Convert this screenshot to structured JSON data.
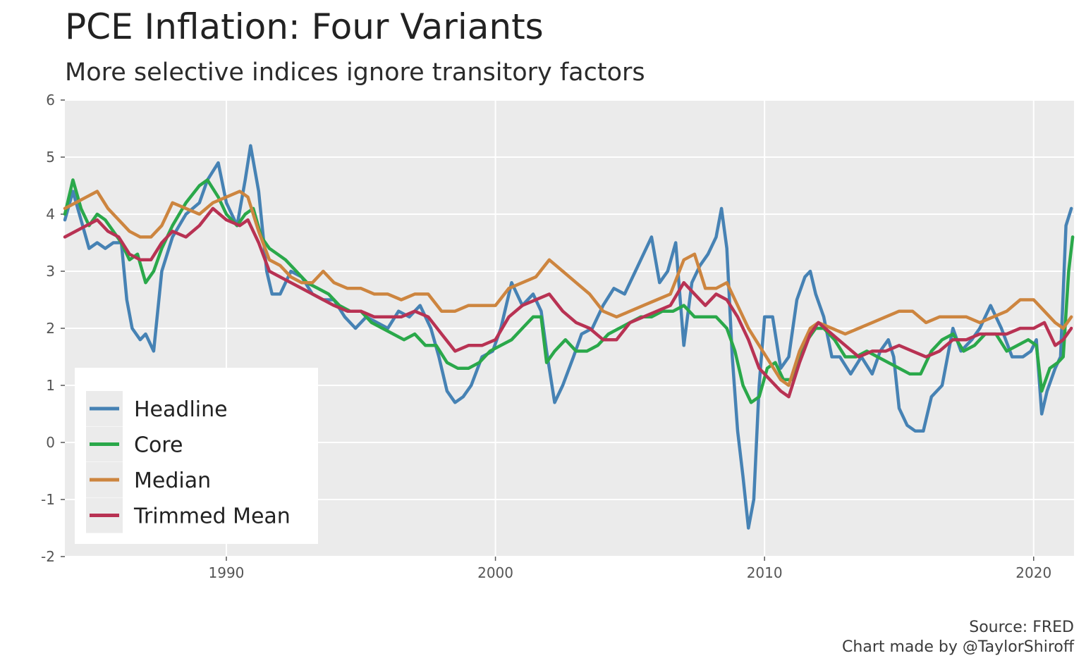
{
  "header": {
    "title": "PCE Inflation: Four Variants",
    "subtitle": "More selective indices ignore transitory factors"
  },
  "caption": {
    "source": "Source: FRED",
    "credit": "Chart made by @TaylorShiroff"
  },
  "colors": {
    "panel_background": "#ebebeb",
    "gridline": "#ffffff",
    "headline": "#4682b4",
    "core": "#2aa84a",
    "median": "#cd853f",
    "trimmed_mean": "#b83253"
  },
  "chart_data": {
    "type": "line",
    "xlim": [
      1984,
      2021.5
    ],
    "ylim": [
      -2,
      6
    ],
    "x_ticks": [
      1990,
      2000,
      2010,
      2020
    ],
    "x_tick_labels": [
      "1990",
      "2000",
      "2010",
      "2020"
    ],
    "y_ticks": [
      -2,
      -1,
      0,
      1,
      2,
      3,
      4,
      5,
      6
    ],
    "y_tick_labels": [
      "-2",
      "-1",
      "0",
      "1",
      "2",
      "3",
      "4",
      "5",
      "6"
    ],
    "grid": true,
    "legend_position": "bottom-left",
    "xlabel": "",
    "ylabel": "",
    "series": [
      {
        "name": "Headline",
        "color": "#4682b4",
        "x": [
          1984.0,
          1984.3,
          1984.6,
          1984.9,
          1985.2,
          1985.5,
          1985.8,
          1986.1,
          1986.3,
          1986.5,
          1986.8,
          1987.0,
          1987.3,
          1987.6,
          1988.0,
          1988.5,
          1989.0,
          1989.3,
          1989.7,
          1990.0,
          1990.4,
          1990.7,
          1990.9,
          1991.2,
          1991.5,
          1991.7,
          1992.0,
          1992.4,
          1992.8,
          1993.2,
          1993.6,
          1994.0,
          1994.4,
          1994.8,
          1995.2,
          1995.6,
          1996.0,
          1996.4,
          1996.8,
          1997.2,
          1997.6,
          1997.9,
          1998.2,
          1998.5,
          1998.8,
          1999.1,
          1999.5,
          1999.9,
          2000.2,
          2000.6,
          2001.0,
          2001.4,
          2001.7,
          2001.9,
          2002.2,
          2002.5,
          2002.9,
          2003.2,
          2003.6,
          2004.0,
          2004.4,
          2004.8,
          2005.2,
          2005.6,
          2005.8,
          2006.1,
          2006.4,
          2006.7,
          2007.0,
          2007.3,
          2007.6,
          2007.9,
          2008.2,
          2008.4,
          2008.6,
          2008.8,
          2009.0,
          2009.2,
          2009.4,
          2009.6,
          2009.8,
          2010.0,
          2010.3,
          2010.6,
          2010.9,
          2011.2,
          2011.5,
          2011.7,
          2011.9,
          2012.2,
          2012.5,
          2012.8,
          2013.2,
          2013.6,
          2014.0,
          2014.3,
          2014.6,
          2014.8,
          2015.0,
          2015.3,
          2015.6,
          2015.9,
          2016.2,
          2016.6,
          2017.0,
          2017.3,
          2017.7,
          2018.0,
          2018.4,
          2018.8,
          2019.2,
          2019.6,
          2019.9,
          2020.1,
          2020.3,
          2020.5,
          2020.8,
          2021.0,
          2021.2,
          2021.4
        ],
        "y": [
          3.9,
          4.4,
          3.9,
          3.4,
          3.5,
          3.4,
          3.5,
          3.5,
          2.5,
          2.0,
          1.8,
          1.9,
          1.6,
          3.0,
          3.6,
          4.0,
          4.2,
          4.6,
          4.9,
          4.2,
          3.8,
          4.6,
          5.2,
          4.4,
          3.0,
          2.6,
          2.6,
          3.0,
          2.9,
          2.6,
          2.5,
          2.5,
          2.2,
          2.0,
          2.2,
          2.1,
          2.0,
          2.3,
          2.2,
          2.4,
          2.0,
          1.5,
          0.9,
          0.7,
          0.8,
          1.0,
          1.5,
          1.6,
          2.0,
          2.8,
          2.4,
          2.6,
          2.3,
          1.6,
          0.7,
          1.0,
          1.5,
          1.9,
          2.0,
          2.4,
          2.7,
          2.6,
          3.0,
          3.4,
          3.6,
          2.8,
          3.0,
          3.5,
          1.7,
          2.8,
          3.1,
          3.3,
          3.6,
          4.1,
          3.4,
          1.5,
          0.2,
          -0.6,
          -1.5,
          -1.0,
          1.0,
          2.2,
          2.2,
          1.3,
          1.5,
          2.5,
          2.9,
          3.0,
          2.6,
          2.2,
          1.5,
          1.5,
          1.2,
          1.5,
          1.2,
          1.6,
          1.8,
          1.5,
          0.6,
          0.3,
          0.2,
          0.2,
          0.8,
          1.0,
          2.0,
          1.6,
          1.8,
          2.0,
          2.4,
          2.0,
          1.5,
          1.5,
          1.6,
          1.8,
          0.5,
          0.9,
          1.3,
          1.5,
          3.8,
          4.1
        ]
      },
      {
        "name": "Core",
        "color": "#2aa84a",
        "x": [
          1984.0,
          1984.3,
          1984.6,
          1984.9,
          1985.2,
          1985.5,
          1985.8,
          1986.1,
          1986.4,
          1986.7,
          1987.0,
          1987.3,
          1987.6,
          1988.0,
          1988.5,
          1989.0,
          1989.3,
          1989.7,
          1990.0,
          1990.4,
          1990.7,
          1991.0,
          1991.3,
          1991.6,
          1991.9,
          1992.2,
          1992.6,
          1993.0,
          1993.4,
          1993.8,
          1994.2,
          1994.6,
          1995.0,
          1995.4,
          1995.8,
          1996.2,
          1996.6,
          1997.0,
          1997.4,
          1997.8,
          1998.2,
          1998.6,
          1999.0,
          1999.4,
          1999.8,
          2000.2,
          2000.6,
          2001.0,
          2001.4,
          2001.7,
          2001.9,
          2002.2,
          2002.6,
          2003.0,
          2003.4,
          2003.8,
          2004.2,
          2004.6,
          2005.0,
          2005.4,
          2005.8,
          2006.2,
          2006.6,
          2007.0,
          2007.4,
          2007.8,
          2008.2,
          2008.6,
          2008.9,
          2009.2,
          2009.5,
          2009.8,
          2010.1,
          2010.4,
          2010.7,
          2011.0,
          2011.3,
          2011.6,
          2011.9,
          2012.2,
          2012.6,
          2013.0,
          2013.4,
          2013.8,
          2014.2,
          2014.6,
          2015.0,
          2015.4,
          2015.8,
          2016.2,
          2016.6,
          2017.0,
          2017.4,
          2017.8,
          2018.2,
          2018.6,
          2019.0,
          2019.4,
          2019.8,
          2020.1,
          2020.3,
          2020.6,
          2020.9,
          2021.1,
          2021.3,
          2021.45
        ],
        "y": [
          4.0,
          4.6,
          4.1,
          3.8,
          4.0,
          3.9,
          3.7,
          3.5,
          3.2,
          3.3,
          2.8,
          3.0,
          3.4,
          3.8,
          4.2,
          4.5,
          4.6,
          4.3,
          4.0,
          3.8,
          4.0,
          4.1,
          3.6,
          3.4,
          3.3,
          3.2,
          3.0,
          2.8,
          2.7,
          2.6,
          2.4,
          2.3,
          2.3,
          2.1,
          2.0,
          1.9,
          1.8,
          1.9,
          1.7,
          1.7,
          1.4,
          1.3,
          1.3,
          1.4,
          1.6,
          1.7,
          1.8,
          2.0,
          2.2,
          2.2,
          1.4,
          1.6,
          1.8,
          1.6,
          1.6,
          1.7,
          1.9,
          2.0,
          2.1,
          2.2,
          2.2,
          2.3,
          2.3,
          2.4,
          2.2,
          2.2,
          2.2,
          2.0,
          1.6,
          1.0,
          0.7,
          0.8,
          1.3,
          1.4,
          1.1,
          1.1,
          1.5,
          1.8,
          2.0,
          2.0,
          1.8,
          1.5,
          1.5,
          1.6,
          1.5,
          1.4,
          1.3,
          1.2,
          1.2,
          1.6,
          1.8,
          1.9,
          1.6,
          1.7,
          1.9,
          1.9,
          1.6,
          1.7,
          1.8,
          1.7,
          0.9,
          1.3,
          1.4,
          1.5,
          3.0,
          3.6
        ]
      },
      {
        "name": "Median",
        "color": "#cd853f",
        "x": [
          1984.0,
          1984.4,
          1984.8,
          1985.2,
          1985.6,
          1986.0,
          1986.4,
          1986.8,
          1987.2,
          1987.6,
          1988.0,
          1988.5,
          1989.0,
          1989.5,
          1990.0,
          1990.5,
          1990.8,
          1991.2,
          1991.6,
          1992.0,
          1992.4,
          1992.8,
          1993.2,
          1993.6,
          1994.0,
          1994.5,
          1995.0,
          1995.5,
          1996.0,
          1996.5,
          1997.0,
          1997.5,
          1998.0,
          1998.5,
          1999.0,
          1999.5,
          2000.0,
          2000.5,
          2001.0,
          2001.5,
          2002.0,
          2002.5,
          2003.0,
          2003.5,
          2004.0,
          2004.5,
          2005.0,
          2005.5,
          2006.0,
          2006.5,
          2007.0,
          2007.4,
          2007.8,
          2008.2,
          2008.6,
          2009.0,
          2009.4,
          2009.8,
          2010.2,
          2010.6,
          2010.9,
          2011.3,
          2011.7,
          2012.0,
          2012.5,
          2013.0,
          2013.5,
          2014.0,
          2014.5,
          2015.0,
          2015.5,
          2016.0,
          2016.5,
          2017.0,
          2017.5,
          2018.0,
          2018.5,
          2019.0,
          2019.5,
          2020.0,
          2020.4,
          2020.8,
          2021.1,
          2021.4
        ],
        "y": [
          4.1,
          4.2,
          4.3,
          4.4,
          4.1,
          3.9,
          3.7,
          3.6,
          3.6,
          3.8,
          4.2,
          4.1,
          4.0,
          4.2,
          4.3,
          4.4,
          4.3,
          3.7,
          3.2,
          3.1,
          2.9,
          2.8,
          2.8,
          3.0,
          2.8,
          2.7,
          2.7,
          2.6,
          2.6,
          2.5,
          2.6,
          2.6,
          2.3,
          2.3,
          2.4,
          2.4,
          2.4,
          2.7,
          2.8,
          2.9,
          3.2,
          3.0,
          2.8,
          2.6,
          2.3,
          2.2,
          2.3,
          2.4,
          2.5,
          2.6,
          3.2,
          3.3,
          2.7,
          2.7,
          2.8,
          2.4,
          2.0,
          1.7,
          1.4,
          1.1,
          1.0,
          1.6,
          2.0,
          2.1,
          2.0,
          1.9,
          2.0,
          2.1,
          2.2,
          2.3,
          2.3,
          2.1,
          2.2,
          2.2,
          2.2,
          2.1,
          2.2,
          2.3,
          2.5,
          2.5,
          2.3,
          2.1,
          2.0,
          2.2
        ]
      },
      {
        "name": "Trimmed Mean",
        "color": "#b83253",
        "x": [
          1984.0,
          1984.4,
          1984.8,
          1985.2,
          1985.6,
          1986.0,
          1986.4,
          1986.8,
          1987.2,
          1987.6,
          1988.0,
          1988.5,
          1989.0,
          1989.5,
          1990.0,
          1990.5,
          1990.8,
          1991.2,
          1991.6,
          1992.0,
          1992.4,
          1992.8,
          1993.2,
          1993.6,
          1994.0,
          1994.5,
          1995.0,
          1995.5,
          1996.0,
          1996.5,
          1997.0,
          1997.5,
          1998.0,
          1998.5,
          1999.0,
          1999.5,
          2000.0,
          2000.5,
          2001.0,
          2001.5,
          2002.0,
          2002.5,
          2003.0,
          2003.5,
          2004.0,
          2004.5,
          2005.0,
          2005.5,
          2006.0,
          2006.5,
          2007.0,
          2007.4,
          2007.8,
          2008.2,
          2008.6,
          2009.0,
          2009.4,
          2009.8,
          2010.2,
          2010.6,
          2010.9,
          2011.3,
          2011.7,
          2012.0,
          2012.5,
          2013.0,
          2013.5,
          2014.0,
          2014.5,
          2015.0,
          2015.5,
          2016.0,
          2016.5,
          2017.0,
          2017.5,
          2018.0,
          2018.5,
          2019.0,
          2019.5,
          2020.0,
          2020.4,
          2020.8,
          2021.1,
          2021.4
        ],
        "y": [
          3.6,
          3.7,
          3.8,
          3.9,
          3.7,
          3.6,
          3.3,
          3.2,
          3.2,
          3.5,
          3.7,
          3.6,
          3.8,
          4.1,
          3.9,
          3.8,
          3.9,
          3.5,
          3.0,
          2.9,
          2.8,
          2.7,
          2.6,
          2.5,
          2.4,
          2.3,
          2.3,
          2.2,
          2.2,
          2.2,
          2.3,
          2.2,
          1.9,
          1.6,
          1.7,
          1.7,
          1.8,
          2.2,
          2.4,
          2.5,
          2.6,
          2.3,
          2.1,
          2.0,
          1.8,
          1.8,
          2.1,
          2.2,
          2.3,
          2.4,
          2.8,
          2.6,
          2.4,
          2.6,
          2.5,
          2.2,
          1.8,
          1.3,
          1.1,
          0.9,
          0.8,
          1.4,
          1.9,
          2.1,
          1.9,
          1.7,
          1.5,
          1.6,
          1.6,
          1.7,
          1.6,
          1.5,
          1.6,
          1.8,
          1.8,
          1.9,
          1.9,
          1.9,
          2.0,
          2.0,
          2.1,
          1.7,
          1.8,
          2.0
        ]
      }
    ]
  }
}
